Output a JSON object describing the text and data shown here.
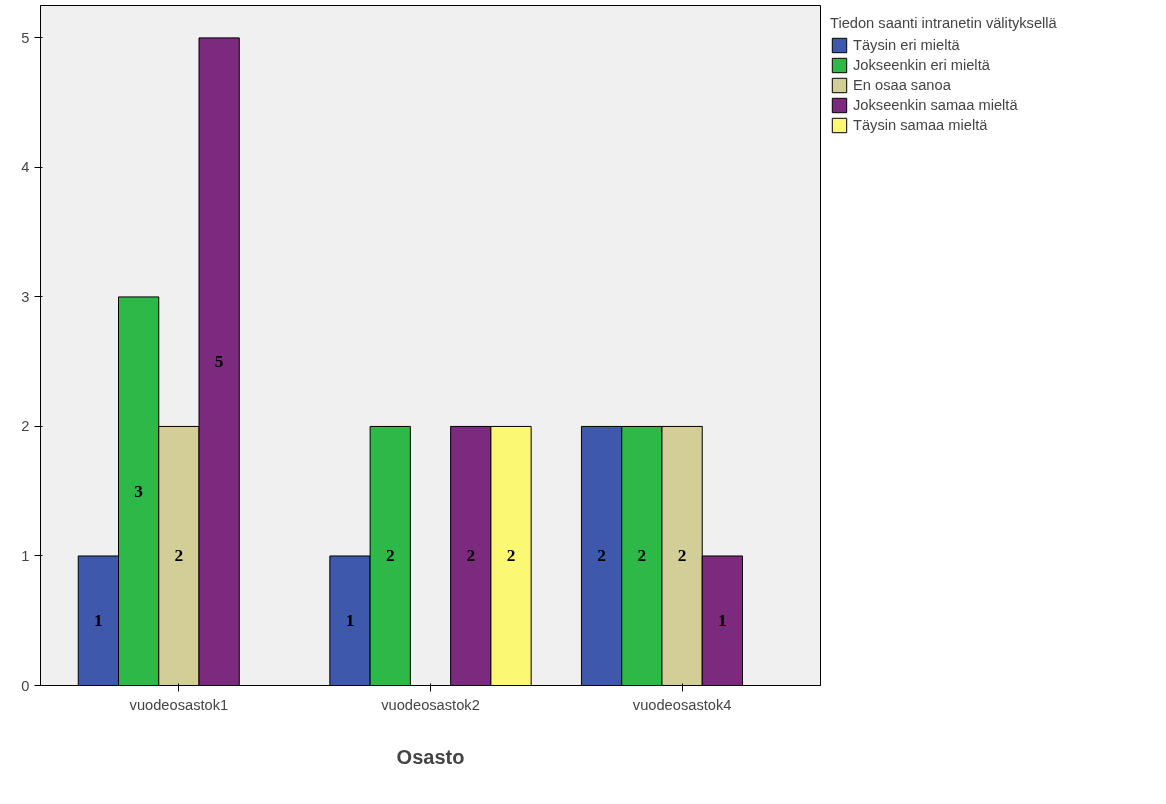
{
  "chart_data": {
    "type": "bar",
    "xlabel": "Osasto",
    "legend_title": "Tiedon saanti intranetin välityksellä",
    "categories": [
      "vuodeosastok1",
      "vuodeosastok2",
      "vuodeosastok4"
    ],
    "series": [
      {
        "name": "Täysin eri mieltä",
        "color": "#3e58ac",
        "values": [
          1,
          1,
          2
        ]
      },
      {
        "name": "Jokseenkin eri mieltä",
        "color": "#2eb848",
        "values": [
          3,
          2,
          2
        ]
      },
      {
        "name": "En osaa sanoa",
        "color": "#d3ce97",
        "values": [
          2,
          null,
          2
        ]
      },
      {
        "name": "Jokseenkin samaa mieltä",
        "color": "#7b2a7d",
        "values": [
          5,
          2,
          1
        ]
      },
      {
        "name": "Täysin samaa mieltä",
        "color": "#fbf873",
        "values": [
          null,
          2,
          null
        ]
      }
    ],
    "ylim": [
      0,
      5.25
    ],
    "yticks": [
      0,
      1,
      2,
      3,
      4,
      5
    ],
    "grid": false,
    "legend": "right",
    "data_labels": true
  }
}
